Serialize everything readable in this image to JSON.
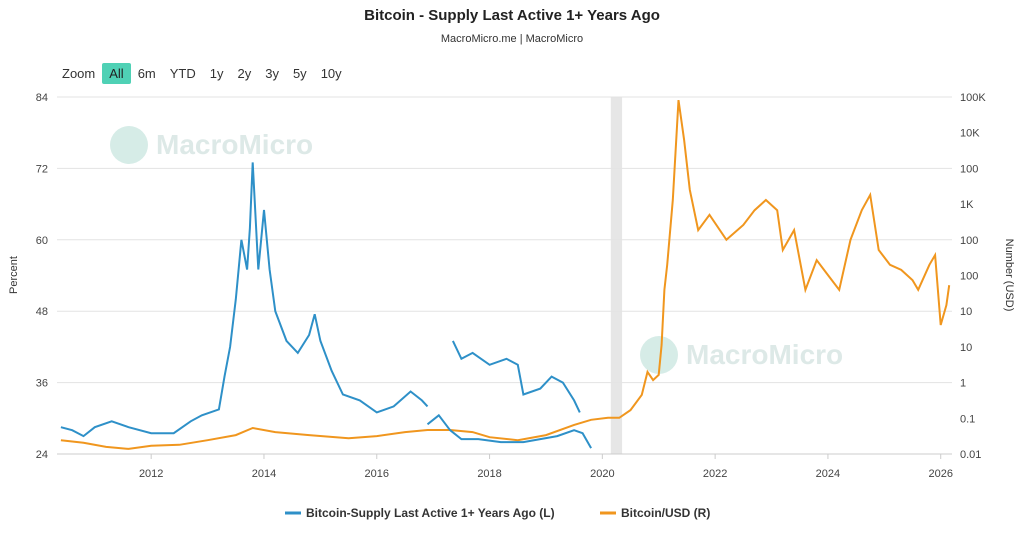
{
  "header": {
    "title": "Bitcoin - Supply Last Active 1+ Years Ago",
    "subtitle": "MacroMicro.me | MacroMicro"
  },
  "zoom": {
    "label": "Zoom",
    "buttons": [
      "All",
      "6m",
      "YTD",
      "1y",
      "2y",
      "3y",
      "5y",
      "10y"
    ],
    "active": "All"
  },
  "watermark": "MacroMicro",
  "chart_data": {
    "type": "line",
    "title": "Bitcoin - Supply Last Active 1+ Years Ago",
    "xlabel": "",
    "x_ticks": [
      "2012",
      "2014",
      "2016",
      "2018",
      "2020",
      "2022",
      "2024",
      "2026"
    ],
    "xlim": [
      2010.33,
      2026.2
    ],
    "left_axis": {
      "label": "Percent",
      "ticks": [
        "84",
        "72",
        "60",
        "48",
        "36",
        "24"
      ],
      "ylim": [
        24,
        84
      ]
    },
    "right_axis": {
      "label": "Number (USD)",
      "scale": "log10",
      "ticks": [
        "100K",
        "10K",
        "100",
        "1K",
        "100",
        "100",
        "10",
        "10",
        "1",
        "0.1",
        "0.01"
      ],
      "ylim_log10": [
        -2,
        5
      ]
    },
    "shaded_band": [
      2020.15,
      2020.35
    ],
    "series": [
      {
        "name": "Bitcoin-Supply Last Active 1+ Years Ago (L)",
        "color": "#2e90c8",
        "axis": "left",
        "segments": [
          [
            [
              2010.4,
              28.5
            ],
            [
              2010.6,
              28
            ],
            [
              2010.8,
              27
            ],
            [
              2011.0,
              28.5
            ],
            [
              2011.3,
              29.5
            ],
            [
              2011.6,
              28.5
            ],
            [
              2012.0,
              27.5
            ],
            [
              2012.4,
              27.5
            ],
            [
              2012.7,
              29.5
            ],
            [
              2012.9,
              30.5
            ],
            [
              2013.2,
              31.5
            ],
            [
              2013.3,
              37
            ],
            [
              2013.4,
              42
            ],
            [
              2013.5,
              50
            ],
            [
              2013.6,
              60
            ],
            [
              2013.7,
              55
            ],
            [
              2013.75,
              62
            ],
            [
              2013.8,
              73
            ],
            [
              2013.9,
              55
            ],
            [
              2014.0,
              65
            ],
            [
              2014.1,
              55
            ],
            [
              2014.2,
              48
            ],
            [
              2014.4,
              43
            ],
            [
              2014.6,
              41
            ],
            [
              2014.8,
              44
            ],
            [
              2014.9,
              47.5
            ],
            [
              2015.0,
              43
            ],
            [
              2015.2,
              38
            ],
            [
              2015.4,
              34
            ],
            [
              2015.7,
              33
            ],
            [
              2016.0,
              31
            ],
            [
              2016.3,
              32
            ],
            [
              2016.6,
              34.5
            ],
            [
              2016.8,
              33
            ],
            [
              2016.9,
              32
            ]
          ],
          [
            [
              2017.35,
              43
            ],
            [
              2017.5,
              40
            ],
            [
              2017.7,
              41
            ],
            [
              2018.0,
              39
            ],
            [
              2018.3,
              40
            ],
            [
              2018.5,
              39
            ],
            [
              2018.6,
              34
            ],
            [
              2018.9,
              35
            ],
            [
              2019.1,
              37
            ],
            [
              2019.3,
              36
            ],
            [
              2019.5,
              33
            ],
            [
              2019.6,
              31
            ]
          ],
          [
            [
              2016.9,
              29
            ],
            [
              2017.1,
              30.5
            ],
            [
              2017.3,
              28
            ],
            [
              2017.5,
              26.5
            ],
            [
              2017.8,
              26.5
            ],
            [
              2018.2,
              26
            ],
            [
              2018.6,
              26
            ],
            [
              2018.9,
              26.5
            ],
            [
              2019.2,
              27
            ],
            [
              2019.5,
              28
            ],
            [
              2019.65,
              27.5
            ],
            [
              2019.8,
              25
            ]
          ]
        ]
      },
      {
        "name": "Bitcoin/USD (R)",
        "color": "#f0961e",
        "axis": "right",
        "log10_values": [
          [
            2010.4,
            -1.73
          ],
          [
            2010.8,
            -1.78
          ],
          [
            2011.2,
            -1.86
          ],
          [
            2011.6,
            -1.9
          ],
          [
            2012.0,
            -1.84
          ],
          [
            2012.5,
            -1.82
          ],
          [
            2013.0,
            -1.73
          ],
          [
            2013.5,
            -1.63
          ],
          [
            2013.8,
            -1.49
          ],
          [
            2014.2,
            -1.57
          ],
          [
            2014.8,
            -1.63
          ],
          [
            2015.5,
            -1.69
          ],
          [
            2016.0,
            -1.65
          ],
          [
            2016.5,
            -1.57
          ],
          [
            2016.9,
            -1.53
          ],
          [
            2017.3,
            -1.53
          ],
          [
            2017.7,
            -1.57
          ],
          [
            2018.0,
            -1.67
          ],
          [
            2018.5,
            -1.73
          ],
          [
            2019.0,
            -1.63
          ],
          [
            2019.5,
            -1.43
          ],
          [
            2019.8,
            -1.33
          ],
          [
            2020.1,
            -1.29
          ],
          [
            2020.3,
            -1.29
          ],
          [
            2020.5,
            -1.14
          ],
          [
            2020.7,
            -0.84
          ],
          [
            2020.8,
            -0.39
          ],
          [
            2020.9,
            -0.55
          ],
          [
            2021.0,
            -0.45
          ],
          [
            2021.05,
            0.14
          ],
          [
            2021.1,
            1.22
          ],
          [
            2021.15,
            1.71
          ],
          [
            2021.25,
            2.98
          ],
          [
            2021.35,
            4.94
          ],
          [
            2021.45,
            4.16
          ],
          [
            2021.55,
            3.18
          ],
          [
            2021.7,
            2.39
          ],
          [
            2021.9,
            2.69
          ],
          [
            2022.2,
            2.2
          ],
          [
            2022.5,
            2.49
          ],
          [
            2022.7,
            2.78
          ],
          [
            2022.9,
            2.98
          ],
          [
            2023.1,
            2.78
          ],
          [
            2023.2,
            2.0
          ],
          [
            2023.4,
            2.39
          ],
          [
            2023.6,
            1.22
          ],
          [
            2023.8,
            1.8
          ],
          [
            2024.0,
            1.51
          ],
          [
            2024.2,
            1.22
          ],
          [
            2024.4,
            2.2
          ],
          [
            2024.6,
            2.78
          ],
          [
            2024.75,
            3.08
          ],
          [
            2024.9,
            2.0
          ],
          [
            2025.1,
            1.71
          ],
          [
            2025.3,
            1.61
          ],
          [
            2025.5,
            1.41
          ],
          [
            2025.6,
            1.22
          ],
          [
            2025.8,
            1.71
          ],
          [
            2025.9,
            1.9
          ],
          [
            2026.0,
            0.53
          ],
          [
            2026.1,
            0.92
          ],
          [
            2026.15,
            1.31
          ]
        ]
      }
    ],
    "legend": {
      "position": "bottom",
      "entries": [
        "Bitcoin-Supply Last Active 1+ Years Ago (L)",
        "Bitcoin/USD (R)"
      ]
    },
    "grid": true
  }
}
